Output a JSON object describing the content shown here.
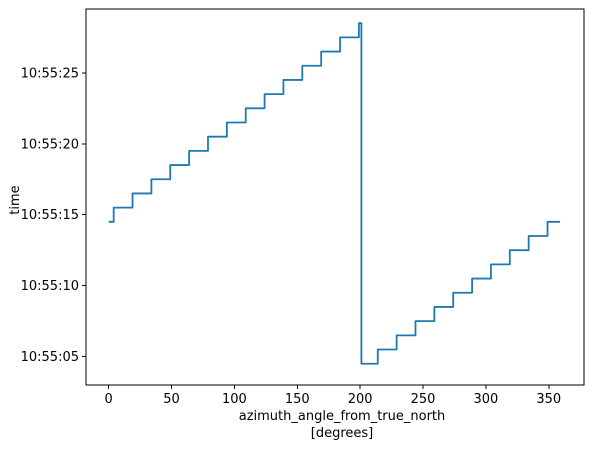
{
  "chart_data": {
    "type": "line",
    "title": "",
    "xlabel": "azimuth_angle_from_true_north",
    "xlabel_unit": "[degrees]",
    "ylabel": "time",
    "xlim": [
      -18,
      378
    ],
    "ylim_seconds": [
      3.0,
      29.5
    ],
    "x_ticks": [
      0,
      50,
      100,
      150,
      200,
      250,
      300,
      350
    ],
    "x_tick_labels": [
      "0",
      "50",
      "100",
      "150",
      "200",
      "250",
      "300",
      "350"
    ],
    "y_ticks_seconds": [
      5,
      10,
      15,
      20,
      25
    ],
    "y_tick_labels": [
      "10:55:05",
      "10:55:10",
      "10:55:15",
      "10:55:20",
      "10:55:25"
    ],
    "series": [
      {
        "color": "#1f77b4",
        "x": [
          0,
          4,
          4,
          19,
          19,
          34,
          34,
          49,
          49,
          64,
          64,
          79,
          79,
          94,
          94,
          109,
          109,
          124,
          124,
          139,
          139,
          154,
          154,
          169,
          169,
          184,
          184,
          199,
          199,
          201,
          201,
          214,
          214,
          229,
          229,
          244,
          244,
          259,
          259,
          274,
          274,
          289,
          289,
          304,
          304,
          319,
          319,
          334,
          334,
          349,
          349,
          359
        ],
        "time": [
          "10:55:14.5",
          "10:55:14.5",
          "10:55:15.5",
          "10:55:15.5",
          "10:55:16.5",
          "10:55:16.5",
          "10:55:17.5",
          "10:55:17.5",
          "10:55:18.5",
          "10:55:18.5",
          "10:55:19.5",
          "10:55:19.5",
          "10:55:20.5",
          "10:55:20.5",
          "10:55:21.5",
          "10:55:21.5",
          "10:55:22.5",
          "10:55:22.5",
          "10:55:23.5",
          "10:55:23.5",
          "10:55:24.5",
          "10:55:24.5",
          "10:55:25.5",
          "10:55:25.5",
          "10:55:26.5",
          "10:55:26.5",
          "10:55:27.5",
          "10:55:27.5",
          "10:55:28.5",
          "10:55:28.5",
          "10:55:04.5",
          "10:55:04.5",
          "10:55:05.5",
          "10:55:05.5",
          "10:55:06.5",
          "10:55:06.5",
          "10:55:07.5",
          "10:55:07.5",
          "10:55:08.5",
          "10:55:08.5",
          "10:55:09.5",
          "10:55:09.5",
          "10:55:10.5",
          "10:55:10.5",
          "10:55:11.5",
          "10:55:11.5",
          "10:55:12.5",
          "10:55:12.5",
          "10:55:13.5",
          "10:55:13.5",
          "10:55:14.5",
          "10:55:14.5"
        ]
      }
    ],
    "grid": false,
    "legend": "none"
  }
}
